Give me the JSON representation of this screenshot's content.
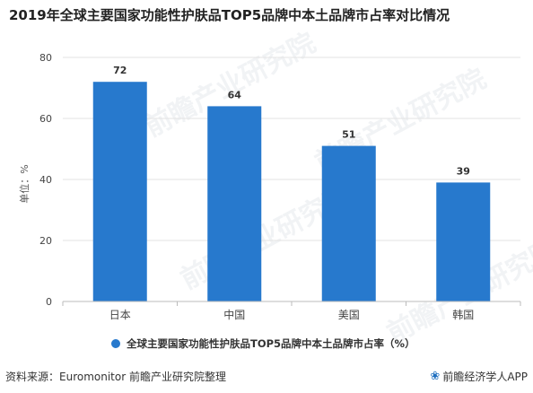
{
  "title": "2019年全球主要国家功能性护肤品TOP5品牌中本土品牌市占率对比情况",
  "ylabel": "单位：%",
  "legend_label": "全球主要国家功能性护肤品TOP5品牌中本土品牌市占率（%）",
  "source": "资料来源：Euromonitor 前瞻产业研究院整理",
  "brand": "前瞻经济学人APP",
  "brand_icon": "paw-icon",
  "watermark": "前瞻产业研究院",
  "colors": {
    "bar": "#2779cd",
    "grid": "#e3e3e3",
    "axis": "#bbbbbb"
  },
  "chart_data": {
    "type": "bar",
    "title": "2019年全球主要国家功能性护肤品TOP5品牌中本土品牌市占率对比情况",
    "ylabel": "单位：%",
    "xlabel": "",
    "categories": [
      "日本",
      "中国",
      "美国",
      "韩国"
    ],
    "series": [
      {
        "name": "全球主要国家功能性护肤品TOP5品牌中本土品牌市占率（%）",
        "values": [
          72,
          64,
          51,
          39
        ]
      }
    ],
    "ylim": [
      0,
      80
    ],
    "yticks": [
      0,
      20,
      40,
      60,
      80
    ],
    "grid": true,
    "legend": "bottom"
  }
}
